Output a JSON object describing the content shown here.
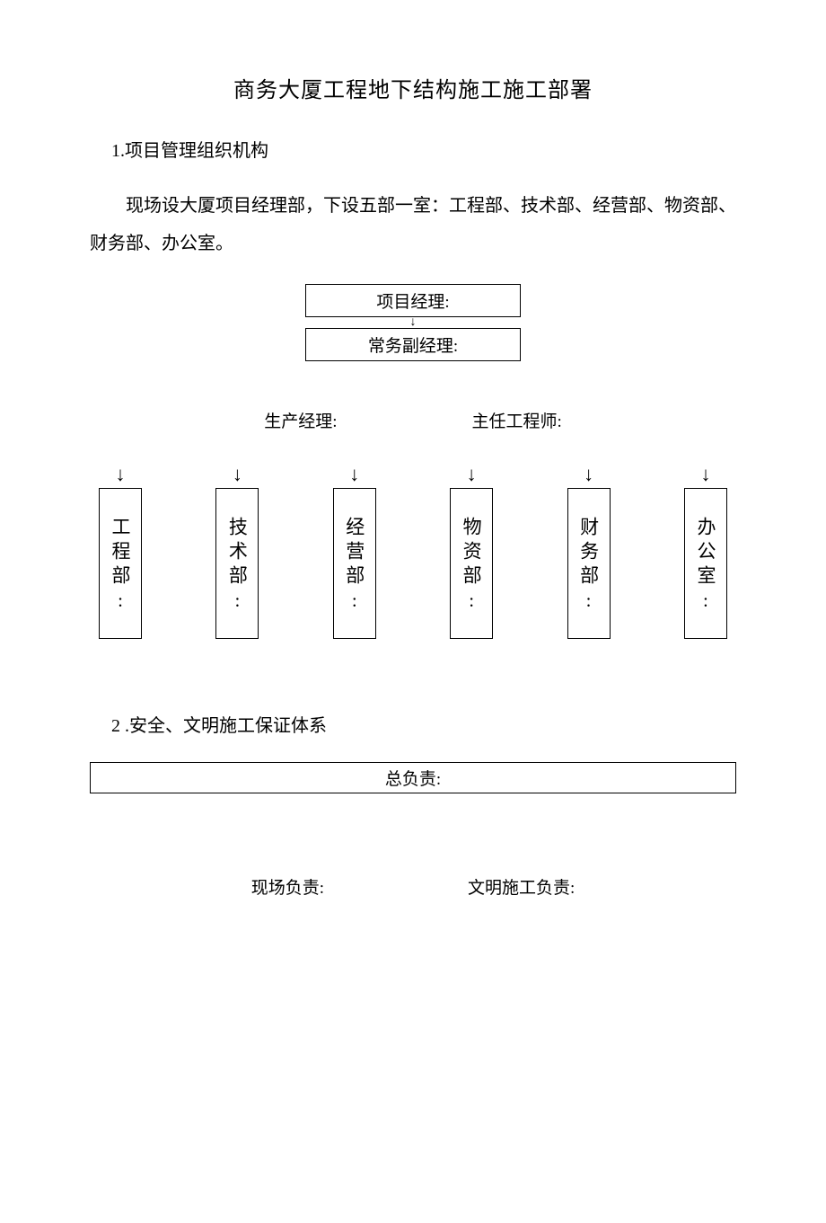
{
  "doc": {
    "title": "商务大厦工程地下结构施工施工部署",
    "section1_heading": "1.项目管理组织机构",
    "section1_body": "现场设大厦项目经理部，下设五部一室：工程部、技术部、经营部、物资部、财务部、办公室。",
    "org": {
      "project_manager": "项目经理:",
      "deputy_manager": "常务副经理:",
      "production_manager": "生产经理:",
      "chief_engineer": "主任工程师:",
      "departments": [
        "工程部:",
        "技术部:",
        "经营部:",
        "物资部:",
        "财务部:",
        "办公室:"
      ]
    },
    "section2_heading": "2 .安全、文明施工保证体系",
    "safety": {
      "overall": "总负责:",
      "site": "现场负责:",
      "civilized": "文明施工负责:"
    }
  },
  "style": {
    "background_color": "#ffffff",
    "text_color": "#000000",
    "border_color": "#000000",
    "title_fontsize": 24,
    "body_fontsize": 20,
    "box_fontsize": 19,
    "dept_box_width": 48,
    "dept_box_height": 168,
    "top_box_width": 240
  }
}
